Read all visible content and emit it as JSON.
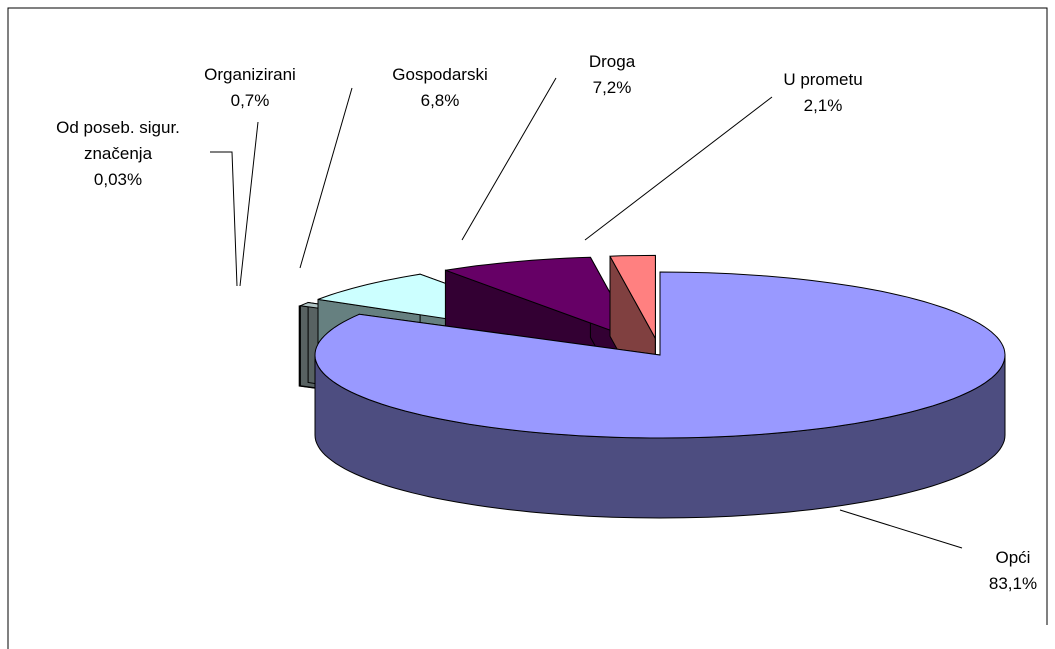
{
  "chart_data": {
    "type": "pie3d",
    "categories": [
      "Opći",
      "Od poseb. sigur. značenja",
      "Organizirani",
      "Gospodarski",
      "Droga",
      "U prometu"
    ],
    "values": [
      83.1,
      0.03,
      0.7,
      6.8,
      7.2,
      2.1
    ],
    "value_labels": [
      "83,1%",
      "0,03%",
      "0,7%",
      "6,8%",
      "7,2%",
      "2,1%"
    ],
    "colors": [
      "#9999ff",
      "#993366",
      "#b0c4c4",
      "#ccffff",
      "#660066",
      "#ff8080"
    ]
  }
}
